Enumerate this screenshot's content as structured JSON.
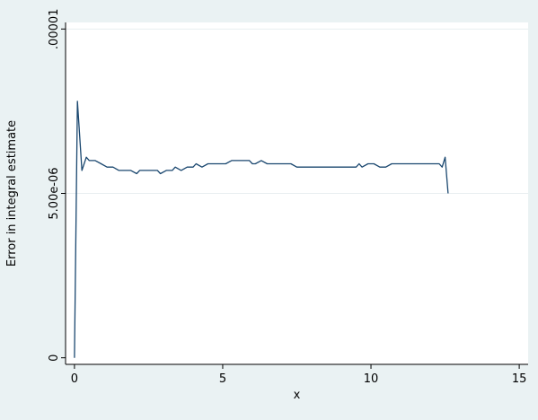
{
  "chart_data": {
    "type": "line",
    "title": "",
    "xlabel": "x",
    "ylabel": "Error in integral estimate",
    "xlim": [
      -0.3,
      15.3
    ],
    "ylim": [
      -2e-07,
      1.02e-05
    ],
    "xticks": [
      0,
      5,
      10,
      15
    ],
    "xtick_labels": [
      "0",
      "5",
      "10",
      "15"
    ],
    "yticks": [
      0,
      5e-06,
      1e-05
    ],
    "ytick_labels": [
      "0",
      "5.00e-06",
      ".00001"
    ],
    "grid": "horizontal",
    "legend": "none",
    "colors": {
      "line": "#1a476f",
      "plot_bg": "#ffffff",
      "outer_bg": "#eaf2f3",
      "grid": "#e8eef0"
    },
    "series": [
      {
        "x": [
          0,
          0.1,
          0.25,
          0.4,
          0.5,
          0.7,
          0.9,
          1.1,
          1.3,
          1.5,
          1.7,
          1.9,
          2.1,
          2.2,
          2.4,
          2.6,
          2.8,
          2.9,
          3.1,
          3.3,
          3.4,
          3.6,
          3.8,
          4.0,
          4.1,
          4.3,
          4.5,
          4.7,
          4.9,
          5.1,
          5.3,
          5.5,
          5.7,
          5.9,
          6.0,
          6.1,
          6.3,
          6.5,
          6.7,
          6.9,
          7.1,
          7.3,
          7.5,
          7.7,
          7.9,
          8.1,
          8.3,
          8.5,
          8.7,
          8.9,
          9.1,
          9.3,
          9.5,
          9.6,
          9.7,
          9.9,
          10.1,
          10.3,
          10.5,
          10.7,
          10.9,
          11.1,
          11.3,
          11.5,
          11.7,
          11.9,
          12.1,
          12.3,
          12.4,
          12.5,
          12.6
        ],
        "y": [
          0,
          7.8e-06,
          5.7e-06,
          6.1e-06,
          6e-06,
          6e-06,
          5.9e-06,
          5.8e-06,
          5.8e-06,
          5.7e-06,
          5.7e-06,
          5.7e-06,
          5.6e-06,
          5.7e-06,
          5.7e-06,
          5.7e-06,
          5.7e-06,
          5.6e-06,
          5.7e-06,
          5.7e-06,
          5.8e-06,
          5.7e-06,
          5.8e-06,
          5.8e-06,
          5.9e-06,
          5.8e-06,
          5.9e-06,
          5.9e-06,
          5.9e-06,
          5.9e-06,
          6e-06,
          6e-06,
          6e-06,
          6e-06,
          5.9e-06,
          5.9e-06,
          6e-06,
          5.9e-06,
          5.9e-06,
          5.9e-06,
          5.9e-06,
          5.9e-06,
          5.8e-06,
          5.8e-06,
          5.8e-06,
          5.8e-06,
          5.8e-06,
          5.8e-06,
          5.8e-06,
          5.8e-06,
          5.8e-06,
          5.8e-06,
          5.8e-06,
          5.9e-06,
          5.8e-06,
          5.9e-06,
          5.9e-06,
          5.8e-06,
          5.8e-06,
          5.9e-06,
          5.9e-06,
          5.9e-06,
          5.9e-06,
          5.9e-06,
          5.9e-06,
          5.9e-06,
          5.9e-06,
          5.9e-06,
          5.8e-06,
          6.1e-06,
          5e-06
        ]
      }
    ]
  }
}
